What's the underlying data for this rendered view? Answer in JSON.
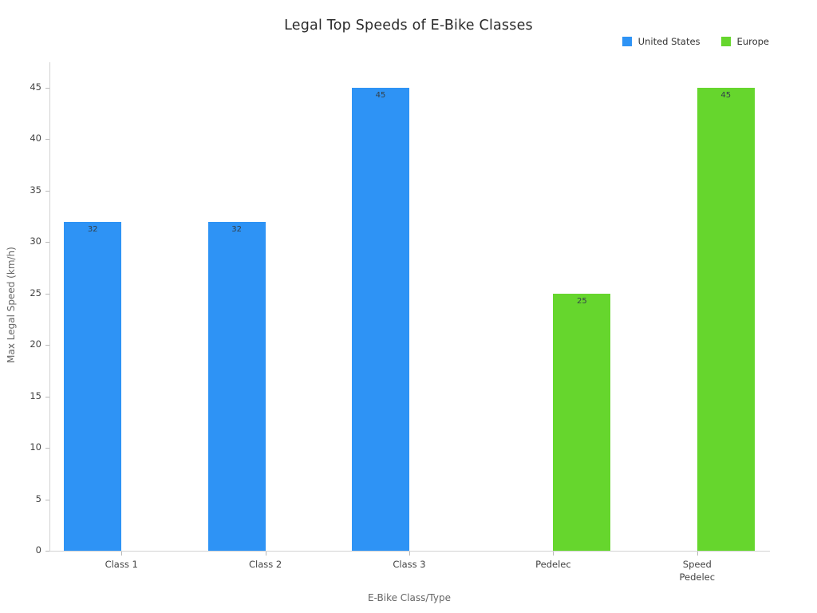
{
  "chart_data": {
    "type": "bar",
    "title": "Legal Top Speeds of E-Bike Classes",
    "xlabel": "E-Bike Class/Type",
    "ylabel": "Max Legal Speed (km/h)",
    "categories": [
      "Class 1",
      "Class 2",
      "Class 3",
      "Pedelec",
      "Speed Pedelec"
    ],
    "series": [
      {
        "name": "United States",
        "color": "#2e93f5",
        "values": [
          32,
          32,
          45,
          null,
          null
        ]
      },
      {
        "name": "Europe",
        "color": "#66d62d",
        "values": [
          null,
          null,
          null,
          25,
          45
        ]
      }
    ],
    "ylim": [
      0,
      45
    ],
    "yticks": [
      0,
      5,
      10,
      15,
      20,
      25,
      30,
      35,
      40,
      45
    ],
    "grid": false,
    "legend_position": "top-right",
    "value_labels_shown": true
  },
  "colors": {
    "axis_line": "#d2d2d2",
    "tick_text": "#444444",
    "axis_title_text": "#666666",
    "title_text": "#2b2b2b",
    "bar_value_text": "#33404a",
    "background": "#ffffff"
  }
}
